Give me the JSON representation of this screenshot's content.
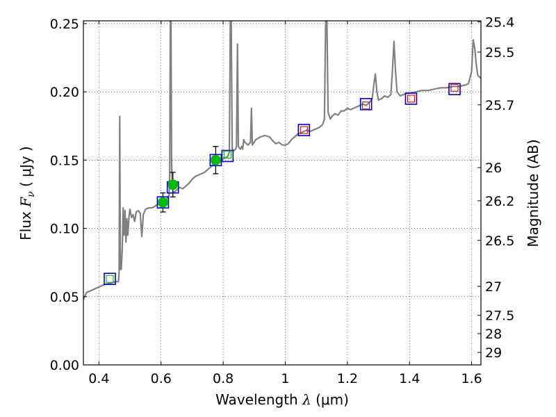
{
  "chart_data": {
    "type": "scatter",
    "title": "",
    "xlabel": {
      "text": "Wavelength",
      "symbol": "λ",
      "unit": "(μm)"
    },
    "ylabel": {
      "text": "Flux",
      "symbol": "F",
      "subscript": "ν",
      "unit": "( μJy )"
    },
    "y2label": "Magnitude (AB)",
    "xlim": [
      0.35,
      1.63
    ],
    "ylim": [
      0.0,
      0.252
    ],
    "grid": true,
    "x_ticks": [
      {
        "value": 0.4,
        "label": "0.4"
      },
      {
        "value": 0.6,
        "label": "0.6"
      },
      {
        "value": 0.8,
        "label": "0.8"
      },
      {
        "value": 1.0,
        "label": "1"
      },
      {
        "value": 1.2,
        "label": "1.2"
      },
      {
        "value": 1.4,
        "label": "1.4"
      },
      {
        "value": 1.6,
        "label": "1.6"
      }
    ],
    "y_ticks": [
      {
        "value": 0.0,
        "label": "0.00"
      },
      {
        "value": 0.05,
        "label": "0.05"
      },
      {
        "value": 0.1,
        "label": "0.10"
      },
      {
        "value": 0.15,
        "label": "0.15"
      },
      {
        "value": 0.2,
        "label": "0.20"
      },
      {
        "value": 0.25,
        "label": "0.25"
      }
    ],
    "y2_ticks": [
      {
        "label": "25.4",
        "flux": 0.2513
      },
      {
        "label": "25.5",
        "flux": 0.2291
      },
      {
        "label": "25.7",
        "flux": 0.1905
      },
      {
        "label": "26",
        "flux": 0.1445
      },
      {
        "label": "26.2",
        "flux": 0.1202
      },
      {
        "label": "26.5",
        "flux": 0.0912
      },
      {
        "label": "27",
        "flux": 0.0575
      },
      {
        "label": "27.5",
        "flux": 0.0363
      },
      {
        "label": "28",
        "flux": 0.0229
      },
      {
        "label": "29",
        "flux": 0.0091
      }
    ],
    "series": [
      {
        "kind": "model_spectrum",
        "color": "#808080",
        "points": [
          [
            0.35,
            0.048
          ],
          [
            0.36,
            0.053
          ],
          [
            0.38,
            0.055
          ],
          [
            0.4,
            0.057
          ],
          [
            0.42,
            0.059
          ],
          [
            0.44,
            0.06
          ],
          [
            0.455,
            0.061
          ],
          [
            0.463,
            0.061
          ],
          [
            0.465,
            0.068
          ],
          [
            0.467,
            0.182
          ],
          [
            0.469,
            0.07
          ],
          [
            0.472,
            0.07
          ],
          [
            0.475,
            0.085
          ],
          [
            0.478,
            0.115
          ],
          [
            0.481,
            0.095
          ],
          [
            0.484,
            0.113
          ],
          [
            0.487,
            0.09
          ],
          [
            0.49,
            0.107
          ],
          [
            0.493,
            0.095
          ],
          [
            0.497,
            0.109
          ],
          [
            0.5,
            0.114
          ],
          [
            0.505,
            0.108
          ],
          [
            0.51,
            0.11
          ],
          [
            0.515,
            0.105
          ],
          [
            0.52,
            0.112
          ],
          [
            0.527,
            0.113
          ],
          [
            0.533,
            0.111
          ],
          [
            0.538,
            0.094
          ],
          [
            0.543,
            0.11
          ],
          [
            0.55,
            0.114
          ],
          [
            0.56,
            0.115
          ],
          [
            0.57,
            0.115
          ],
          [
            0.58,
            0.116
          ],
          [
            0.59,
            0.118
          ],
          [
            0.6,
            0.12
          ],
          [
            0.61,
            0.12
          ],
          [
            0.62,
            0.122
          ],
          [
            0.626,
            0.124
          ],
          [
            0.628,
            0.14
          ],
          [
            0.63,
            0.252
          ],
          [
            0.632,
            0.252
          ],
          [
            0.634,
            0.15
          ],
          [
            0.636,
            0.13
          ],
          [
            0.64,
            0.126
          ],
          [
            0.65,
            0.128
          ],
          [
            0.66,
            0.13
          ],
          [
            0.67,
            0.129
          ],
          [
            0.68,
            0.131
          ],
          [
            0.69,
            0.133
          ],
          [
            0.7,
            0.136
          ],
          [
            0.71,
            0.138
          ],
          [
            0.72,
            0.139
          ],
          [
            0.73,
            0.14
          ],
          [
            0.74,
            0.141
          ],
          [
            0.75,
            0.143
          ],
          [
            0.76,
            0.145
          ],
          [
            0.77,
            0.147
          ],
          [
            0.78,
            0.149
          ],
          [
            0.79,
            0.15
          ],
          [
            0.8,
            0.151
          ],
          [
            0.81,
            0.152
          ],
          [
            0.815,
            0.153
          ],
          [
            0.82,
            0.156
          ],
          [
            0.823,
            0.252
          ],
          [
            0.826,
            0.252
          ],
          [
            0.829,
            0.158
          ],
          [
            0.835,
            0.157
          ],
          [
            0.84,
            0.158
          ],
          [
            0.843,
            0.16
          ],
          [
            0.846,
            0.235
          ],
          [
            0.849,
            0.16
          ],
          [
            0.855,
            0.158
          ],
          [
            0.86,
            0.16
          ],
          [
            0.863,
            0.158
          ],
          [
            0.866,
            0.165
          ],
          [
            0.87,
            0.163
          ],
          [
            0.88,
            0.161
          ],
          [
            0.888,
            0.163
          ],
          [
            0.891,
            0.188
          ],
          [
            0.894,
            0.161
          ],
          [
            0.905,
            0.165
          ],
          [
            0.92,
            0.167
          ],
          [
            0.935,
            0.168
          ],
          [
            0.95,
            0.167
          ],
          [
            0.96,
            0.164
          ],
          [
            0.97,
            0.162
          ],
          [
            0.98,
            0.163
          ],
          [
            0.99,
            0.161
          ],
          [
            1.0,
            0.161
          ],
          [
            1.01,
            0.162
          ],
          [
            1.02,
            0.165
          ],
          [
            1.03,
            0.167
          ],
          [
            1.04,
            0.169
          ],
          [
            1.05,
            0.17
          ],
          [
            1.06,
            0.171
          ],
          [
            1.07,
            0.172
          ],
          [
            1.08,
            0.171
          ],
          [
            1.09,
            0.172
          ],
          [
            1.1,
            0.173
          ],
          [
            1.11,
            0.174
          ],
          [
            1.12,
            0.176
          ],
          [
            1.126,
            0.18
          ],
          [
            1.13,
            0.252
          ],
          [
            1.134,
            0.252
          ],
          [
            1.138,
            0.185
          ],
          [
            1.145,
            0.18
          ],
          [
            1.15,
            0.182
          ],
          [
            1.16,
            0.184
          ],
          [
            1.17,
            0.183
          ],
          [
            1.18,
            0.186
          ],
          [
            1.19,
            0.186
          ],
          [
            1.2,
            0.188
          ],
          [
            1.21,
            0.187
          ],
          [
            1.22,
            0.188
          ],
          [
            1.23,
            0.189
          ],
          [
            1.24,
            0.19
          ],
          [
            1.25,
            0.191
          ],
          [
            1.26,
            0.19
          ],
          [
            1.27,
            0.192
          ],
          [
            1.28,
            0.195
          ],
          [
            1.285,
            0.205
          ],
          [
            1.29,
            0.213
          ],
          [
            1.295,
            0.2
          ],
          [
            1.3,
            0.194
          ],
          [
            1.31,
            0.195
          ],
          [
            1.32,
            0.197
          ],
          [
            1.33,
            0.196
          ],
          [
            1.34,
            0.198
          ],
          [
            1.345,
            0.215
          ],
          [
            1.35,
            0.237
          ],
          [
            1.355,
            0.215
          ],
          [
            1.36,
            0.2
          ],
          [
            1.37,
            0.197
          ],
          [
            1.38,
            0.198
          ],
          [
            1.39,
            0.199
          ],
          [
            1.4,
            0.199
          ],
          [
            1.42,
            0.2
          ],
          [
            1.44,
            0.201
          ],
          [
            1.46,
            0.201
          ],
          [
            1.48,
            0.202
          ],
          [
            1.5,
            0.203
          ],
          [
            1.52,
            0.203
          ],
          [
            1.54,
            0.204
          ],
          [
            1.56,
            0.204
          ],
          [
            1.58,
            0.205
          ],
          [
            1.59,
            0.206
          ],
          [
            1.6,
            0.215
          ],
          [
            1.605,
            0.238
          ],
          [
            1.61,
            0.232
          ],
          [
            1.615,
            0.22
          ],
          [
            1.62,
            0.212
          ],
          [
            1.63,
            0.21
          ]
        ]
      },
      {
        "kind": "observed_photometry",
        "color": "#00bb00",
        "points": [
          {
            "x": 0.606,
            "y": 0.119,
            "err": 0.007
          },
          {
            "x": 0.638,
            "y": 0.132,
            "err": 0.009
          },
          {
            "x": 0.776,
            "y": 0.15,
            "err": 0.01
          }
        ]
      },
      {
        "kind": "model_photometry",
        "color": "#0000cc",
        "points": [
          {
            "x": 0.435,
            "y": 0.063
          },
          {
            "x": 0.606,
            "y": 0.119
          },
          {
            "x": 0.638,
            "y": 0.13
          },
          {
            "x": 0.776,
            "y": 0.15
          },
          {
            "x": 0.814,
            "y": 0.153
          },
          {
            "x": 1.06,
            "y": 0.172
          },
          {
            "x": 1.26,
            "y": 0.191
          },
          {
            "x": 1.405,
            "y": 0.195
          },
          {
            "x": 1.545,
            "y": 0.202
          }
        ]
      },
      {
        "kind": "inner_markers",
        "points": [
          {
            "x": 0.435,
            "y": 0.063,
            "color": "#00bb00"
          },
          {
            "x": 0.814,
            "y": 0.154,
            "color": "#00bb00"
          },
          {
            "x": 1.06,
            "y": 0.172,
            "color": "#dd0000"
          },
          {
            "x": 1.26,
            "y": 0.19,
            "color": "#dd0000"
          },
          {
            "x": 1.405,
            "y": 0.195,
            "color": "#dd0000"
          },
          {
            "x": 1.545,
            "y": 0.203,
            "color": "#dd0000"
          }
        ]
      }
    ]
  }
}
